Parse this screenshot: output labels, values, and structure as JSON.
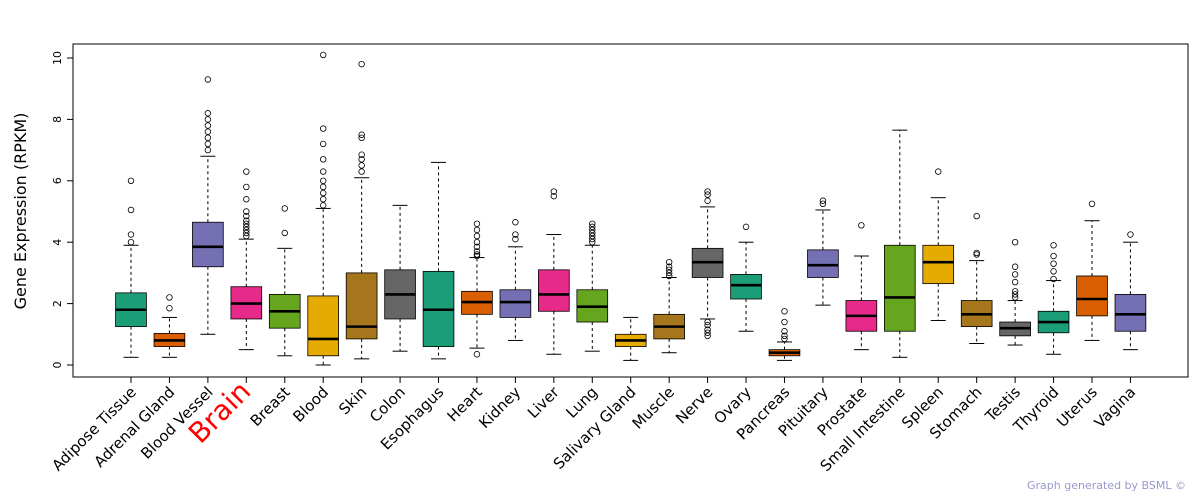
{
  "chart_data": {
    "type": "box",
    "title": "",
    "xlabel": "",
    "ylabel": "Gene Expression (RPKM)",
    "ylim": [
      -0.4,
      10.45
    ],
    "yticks": [
      0,
      2,
      4,
      6,
      8,
      10
    ],
    "highlight": "Brain",
    "footer": "Graph generated by BSML ©",
    "categories": [
      {
        "name": "Adipose Tissue",
        "color": "#1b9e77",
        "whislo": 0.25,
        "q1": 1.25,
        "med": 1.8,
        "q3": 2.35,
        "whishi": 3.9,
        "outliers": [
          4.0,
          4.25,
          5.05,
          6.0
        ]
      },
      {
        "name": "Adrenal Gland",
        "color": "#d95f02",
        "whislo": 0.25,
        "q1": 0.6,
        "med": 0.8,
        "q3": 1.03,
        "whishi": 1.55,
        "outliers": [
          1.85,
          2.2
        ]
      },
      {
        "name": "Blood Vessel",
        "color": "#7570b3",
        "whislo": 1.0,
        "q1": 3.2,
        "med": 3.85,
        "q3": 4.65,
        "whishi": 6.8,
        "outliers": [
          7.0,
          7.2,
          7.4,
          7.6,
          7.8,
          8.0,
          8.2,
          9.3
        ]
      },
      {
        "name": "Brain",
        "color": "#e7298a",
        "whislo": 0.5,
        "q1": 1.5,
        "med": 2.0,
        "q3": 2.55,
        "whishi": 4.1,
        "outliers": [
          4.2,
          4.3,
          4.4,
          4.5,
          4.6,
          4.7,
          4.85,
          5.0,
          5.4,
          5.8,
          6.3
        ]
      },
      {
        "name": "Breast",
        "color": "#66a61e",
        "whislo": 0.3,
        "q1": 1.2,
        "med": 1.75,
        "q3": 2.3,
        "whishi": 3.8,
        "outliers": [
          4.3,
          5.1
        ]
      },
      {
        "name": "Blood",
        "color": "#e6ab02",
        "whislo": 0.0,
        "q1": 0.3,
        "med": 0.85,
        "q3": 2.25,
        "whishi": 5.1,
        "outliers": [
          5.2,
          5.4,
          5.6,
          5.8,
          6.0,
          6.3,
          6.7,
          7.2,
          7.7,
          10.1
        ]
      },
      {
        "name": "Skin",
        "color": "#a6761d",
        "whislo": 0.2,
        "q1": 0.85,
        "med": 1.25,
        "q3": 3.0,
        "whishi": 6.1,
        "outliers": [
          6.3,
          6.5,
          6.7,
          6.85,
          7.4,
          7.5,
          9.8
        ]
      },
      {
        "name": "Colon",
        "color": "#666666",
        "whislo": 0.45,
        "q1": 1.5,
        "med": 2.3,
        "q3": 3.1,
        "whishi": 5.2,
        "outliers": []
      },
      {
        "name": "Esophagus",
        "color": "#1b9e77",
        "whislo": 0.2,
        "q1": 0.6,
        "med": 1.8,
        "q3": 3.05,
        "whishi": 6.6,
        "outliers": []
      },
      {
        "name": "Heart",
        "color": "#d95f02",
        "whislo": 0.55,
        "q1": 1.65,
        "med": 2.05,
        "q3": 2.4,
        "whishi": 3.5,
        "outliers": [
          0.35,
          3.55,
          3.6,
          3.7,
          3.85,
          4.0,
          4.2,
          4.4,
          4.6
        ]
      },
      {
        "name": "Kidney",
        "color": "#7570b3",
        "whislo": 0.8,
        "q1": 1.55,
        "med": 2.05,
        "q3": 2.45,
        "whishi": 3.85,
        "outliers": [
          4.1,
          4.25,
          4.65
        ]
      },
      {
        "name": "Liver",
        "color": "#e7298a",
        "whislo": 0.35,
        "q1": 1.75,
        "med": 2.3,
        "q3": 3.1,
        "whishi": 4.25,
        "outliers": [
          5.5,
          5.65
        ]
      },
      {
        "name": "Lung",
        "color": "#66a61e",
        "whislo": 0.45,
        "q1": 1.4,
        "med": 1.9,
        "q3": 2.45,
        "whishi": 3.9,
        "outliers": [
          4.0,
          4.1,
          4.2,
          4.3,
          4.4,
          4.5,
          4.6
        ]
      },
      {
        "name": "Salivary Gland",
        "color": "#e6ab02",
        "whislo": 0.15,
        "q1": 0.6,
        "med": 0.8,
        "q3": 1.0,
        "whishi": 1.55,
        "outliers": []
      },
      {
        "name": "Muscle",
        "color": "#a6761d",
        "whislo": 0.4,
        "q1": 0.85,
        "med": 1.25,
        "q3": 1.65,
        "whishi": 2.85,
        "outliers": [
          2.9,
          3.0,
          3.1,
          3.2,
          3.35
        ]
      },
      {
        "name": "Nerve",
        "color": "#666666",
        "whislo": 1.5,
        "q1": 2.85,
        "med": 3.35,
        "q3": 3.8,
        "whishi": 5.15,
        "outliers": [
          0.95,
          1.05,
          1.15,
          1.3,
          1.4,
          5.35,
          5.55,
          5.65
        ]
      },
      {
        "name": "Ovary",
        "color": "#1b9e77",
        "whislo": 1.1,
        "q1": 2.15,
        "med": 2.6,
        "q3": 2.95,
        "whishi": 4.0,
        "outliers": [
          4.5
        ]
      },
      {
        "name": "Pancreas",
        "color": "#d95f02",
        "whislo": 0.15,
        "q1": 0.3,
        "med": 0.4,
        "q3": 0.5,
        "whishi": 0.75,
        "outliers": [
          0.85,
          0.95,
          1.1,
          1.4,
          1.75
        ]
      },
      {
        "name": "Pituitary",
        "color": "#7570b3",
        "whislo": 1.95,
        "q1": 2.85,
        "med": 3.25,
        "q3": 3.75,
        "whishi": 5.05,
        "outliers": [
          5.25,
          5.35
        ]
      },
      {
        "name": "Prostate",
        "color": "#e7298a",
        "whislo": 0.5,
        "q1": 1.1,
        "med": 1.6,
        "q3": 2.1,
        "whishi": 3.55,
        "outliers": [
          4.55
        ]
      },
      {
        "name": "Small Intestine",
        "color": "#66a61e",
        "whislo": 0.25,
        "q1": 1.1,
        "med": 2.2,
        "q3": 3.9,
        "whishi": 7.65,
        "outliers": []
      },
      {
        "name": "Spleen",
        "color": "#e6ab02",
        "whislo": 1.45,
        "q1": 2.65,
        "med": 3.35,
        "q3": 3.9,
        "whishi": 5.45,
        "outliers": [
          6.3
        ]
      },
      {
        "name": "Stomach",
        "color": "#a6761d",
        "whislo": 0.7,
        "q1": 1.25,
        "med": 1.65,
        "q3": 2.1,
        "whishi": 3.4,
        "outliers": [
          3.6,
          3.65,
          4.85
        ]
      },
      {
        "name": "Testis",
        "color": "#666666",
        "whislo": 0.65,
        "q1": 0.95,
        "med": 1.2,
        "q3": 1.4,
        "whishi": 2.1,
        "outliers": [
          2.2,
          2.3,
          2.4,
          2.7,
          2.95,
          3.2,
          4.0
        ]
      },
      {
        "name": "Thyroid",
        "color": "#1b9e77",
        "whislo": 0.35,
        "q1": 1.05,
        "med": 1.4,
        "q3": 1.75,
        "whishi": 2.75,
        "outliers": [
          2.8,
          3.05,
          3.3,
          3.55,
          3.9
        ]
      },
      {
        "name": "Uterus",
        "color": "#d95f02",
        "whislo": 0.8,
        "q1": 1.6,
        "med": 2.15,
        "q3": 2.9,
        "whishi": 4.7,
        "outliers": [
          5.25
        ]
      },
      {
        "name": "Vagina",
        "color": "#7570b3",
        "whislo": 0.5,
        "q1": 1.1,
        "med": 1.65,
        "q3": 2.3,
        "whishi": 4.0,
        "outliers": [
          4.25
        ]
      }
    ]
  }
}
